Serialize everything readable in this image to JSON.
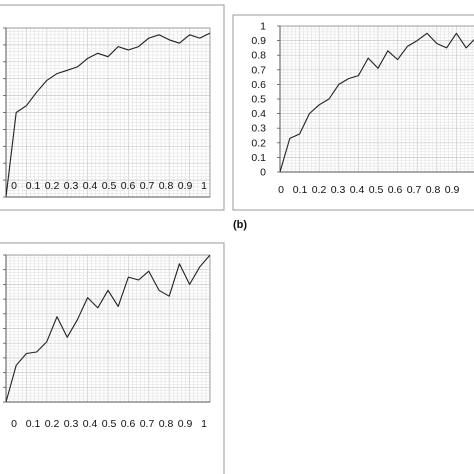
{
  "panel_labels": [
    "(b)"
  ],
  "colors": {
    "line": "#222222",
    "grid_major": "#c8c8c8",
    "grid_minor": "#e6e6e6",
    "frame": "#999999",
    "plot_border": "#888888"
  },
  "chart_data": [
    {
      "type": "line",
      "title": "",
      "xlabel": "",
      "ylabel": "",
      "grid": true,
      "xlim": [
        0,
        1
      ],
      "ylim": [
        0,
        1
      ],
      "xticks": [
        "0",
        "0.1",
        "0.2",
        "0.3",
        "0.4",
        "0.5",
        "0.6",
        "0.7",
        "0.8",
        "0.9",
        "1"
      ],
      "yticks": [],
      "series": [
        {
          "x": [
            0,
            0.05,
            0.1,
            0.15,
            0.2,
            0.25,
            0.3,
            0.35,
            0.4,
            0.45,
            0.5,
            0.55,
            0.6,
            0.65,
            0.7,
            0.75,
            0.8,
            0.85,
            0.9,
            0.95,
            1.0
          ],
          "y": [
            0,
            0.5,
            0.54,
            0.62,
            0.69,
            0.73,
            0.75,
            0.77,
            0.82,
            0.85,
            0.83,
            0.89,
            0.87,
            0.89,
            0.94,
            0.96,
            0.93,
            0.91,
            0.96,
            0.94,
            0.97
          ]
        }
      ]
    },
    {
      "type": "line",
      "title": "",
      "xlabel": "",
      "ylabel": "",
      "grid": true,
      "xlim": [
        0,
        1
      ],
      "ylim": [
        0,
        1
      ],
      "xticks": [
        "0",
        "0.1",
        "0.2",
        "0.3",
        "0.4",
        "0.5",
        "0.6",
        "0.7",
        "0.8",
        "0.9"
      ],
      "yticks": [
        "0",
        "0.1",
        "0.2",
        "0.3",
        "0.4",
        "0.5",
        "0.6",
        "0.7",
        "0.8",
        "0.9",
        "1"
      ],
      "series": [
        {
          "x": [
            0,
            0.05,
            0.1,
            0.15,
            0.2,
            0.25,
            0.3,
            0.35,
            0.4,
            0.45,
            0.5,
            0.55,
            0.6,
            0.65,
            0.7,
            0.75,
            0.8,
            0.85,
            0.9,
            0.95,
            1.0
          ],
          "y": [
            0,
            0.23,
            0.26,
            0.4,
            0.46,
            0.5,
            0.6,
            0.64,
            0.66,
            0.78,
            0.71,
            0.83,
            0.77,
            0.86,
            0.9,
            0.95,
            0.88,
            0.85,
            0.95,
            0.85,
            0.92
          ]
        }
      ]
    },
    {
      "type": "line",
      "title": "",
      "xlabel": "",
      "ylabel": "",
      "grid": true,
      "xlim": [
        0,
        1
      ],
      "ylim": [
        0,
        1
      ],
      "xticks": [
        "0",
        "0.1",
        "0.2",
        "0.3",
        "0.4",
        "0.5",
        "0.6",
        "0.7",
        "0.8",
        "0.9",
        "1"
      ],
      "yticks": [],
      "series": [
        {
          "x": [
            0,
            0.05,
            0.1,
            0.15,
            0.2,
            0.25,
            0.3,
            0.35,
            0.4,
            0.45,
            0.5,
            0.55,
            0.6,
            0.65,
            0.7,
            0.75,
            0.8,
            0.85,
            0.9,
            0.95,
            1.0
          ],
          "y": [
            0,
            0.25,
            0.33,
            0.34,
            0.41,
            0.58,
            0.44,
            0.56,
            0.71,
            0.64,
            0.76,
            0.65,
            0.85,
            0.83,
            0.89,
            0.76,
            0.72,
            0.94,
            0.8,
            0.92,
            1.0
          ]
        }
      ]
    }
  ]
}
